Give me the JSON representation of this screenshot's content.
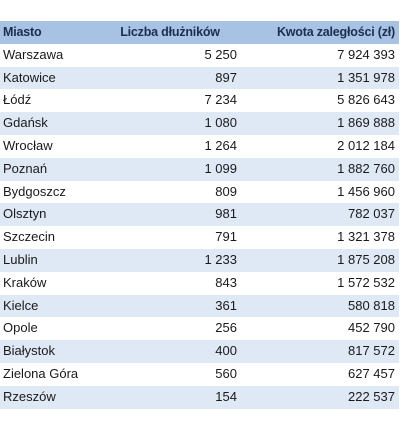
{
  "table": {
    "headers": {
      "city": "Miasto",
      "count": "Liczba dłużników",
      "amount": "Kwota zaległości (zł)"
    },
    "rows": [
      {
        "city": "Warszawa",
        "count": "5 250",
        "amount": "7 924 393"
      },
      {
        "city": "Katowice",
        "count": "897",
        "amount": "1 351 978"
      },
      {
        "city": "Łódź",
        "count": "7 234",
        "amount": "5 826 643"
      },
      {
        "city": "Gdańsk",
        "count": "1 080",
        "amount": "1 869 888"
      },
      {
        "city": "Wrocław",
        "count": "1 264",
        "amount": "2 012 184"
      },
      {
        "city": "Poznań",
        "count": "1 099",
        "amount": "1 882 760"
      },
      {
        "city": "Bydgoszcz",
        "count": "809",
        "amount": "1 456 960"
      },
      {
        "city": "Olsztyn",
        "count": "981",
        "amount": "782 037"
      },
      {
        "city": "Szczecin",
        "count": "791",
        "amount": "1 321 378"
      },
      {
        "city": "Lublin",
        "count": "1 233",
        "amount": "1 875 208"
      },
      {
        "city": "Kraków",
        "count": "843",
        "amount": "1 572 532"
      },
      {
        "city": "Kielce",
        "count": "361",
        "amount": "580 818"
      },
      {
        "city": "Opole",
        "count": "256",
        "amount": "452 790"
      },
      {
        "city": "Białystok",
        "count": "400",
        "amount": "817 572"
      },
      {
        "city": "Zielona Góra",
        "count": "560",
        "amount": "627 457"
      },
      {
        "city": "Rzeszów",
        "count": "154",
        "amount": "222 537"
      }
    ]
  },
  "colors": {
    "header_bg": "#a7c2e3",
    "band_bg": "#dfe8f5",
    "row_bg": "#ffffff"
  }
}
